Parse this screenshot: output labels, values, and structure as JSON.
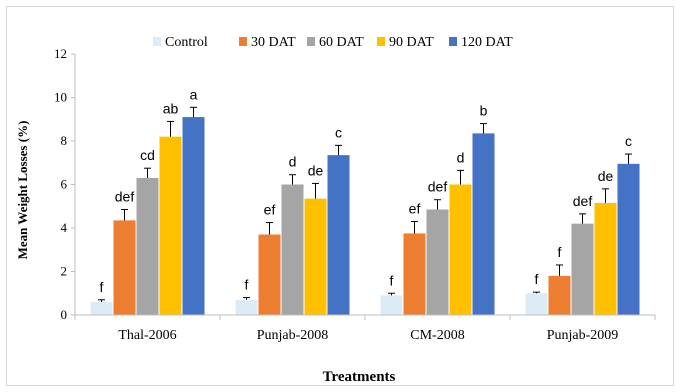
{
  "chart_data": {
    "type": "bar",
    "xlabel": "Treatments",
    "ylabel": "Mean Weight Losses (%)",
    "ylim": [
      0,
      12
    ],
    "yticks": [
      "0",
      "2",
      "4",
      "6",
      "8",
      "10",
      "12"
    ],
    "categories": [
      "Thal-2006",
      "Punjab-2008",
      "CM-2008",
      "Punjab-2009"
    ],
    "legend_position": "top",
    "series": [
      {
        "name": "Control",
        "color": "#ddebf7",
        "values": [
          0.6,
          0.7,
          0.9,
          1.0
        ],
        "errors": [
          0.1,
          0.1,
          0.1,
          0.05
        ],
        "labels": [
          "f",
          "f",
          "f",
          "f"
        ]
      },
      {
        "name": "30 DAT",
        "color": "#ed7d31",
        "values": [
          4.35,
          3.7,
          3.75,
          1.8
        ],
        "errors": [
          0.5,
          0.55,
          0.55,
          0.5
        ],
        "labels": [
          "def",
          "ef",
          "ef",
          "f"
        ]
      },
      {
        "name": "60 DAT",
        "color": "#a5a5a5",
        "values": [
          6.3,
          6.0,
          4.85,
          4.2
        ],
        "errors": [
          0.45,
          0.45,
          0.45,
          0.45
        ],
        "labels": [
          "cd",
          "d",
          "def",
          "def"
        ]
      },
      {
        "name": "90 DAT",
        "color": "#ffc000",
        "values": [
          8.2,
          5.35,
          6.0,
          5.15
        ],
        "errors": [
          0.7,
          0.7,
          0.65,
          0.65
        ],
        "labels": [
          "ab",
          "de",
          "d",
          "de"
        ]
      },
      {
        "name": "120 DAT",
        "color": "#4472c4",
        "values": [
          9.1,
          7.35,
          8.35,
          6.95
        ],
        "errors": [
          0.45,
          0.45,
          0.45,
          0.45
        ],
        "labels": [
          "a",
          "c",
          "b",
          "c"
        ]
      }
    ]
  }
}
